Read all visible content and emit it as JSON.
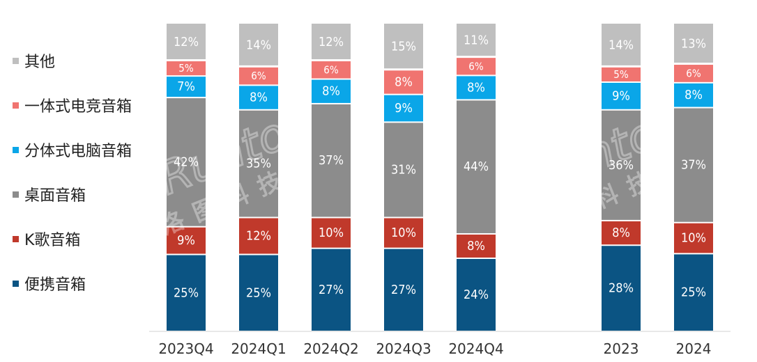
{
  "chart_data": {
    "type": "bar",
    "stacked": true,
    "normalized": true,
    "categories": [
      "2023Q4",
      "2024Q1",
      "2024Q2",
      "2024Q3",
      "2024Q4",
      "2023",
      "2024"
    ],
    "series": [
      {
        "name": "便携音箱",
        "color": "#0b5483",
        "values": [
          25,
          25,
          27,
          27,
          24,
          28,
          25
        ],
        "labels": [
          "25%",
          "25%",
          "27%",
          "27%",
          "24%",
          "28%",
          "25%"
        ]
      },
      {
        "name": "K歌音箱",
        "color": "#c0392b",
        "values": [
          9,
          12,
          10,
          10,
          8,
          8,
          10
        ],
        "labels": [
          "9%",
          "12%",
          "10%",
          "10%",
          "8%",
          "8%",
          "10%"
        ]
      },
      {
        "name": "桌面音箱",
        "color": "#8c8c8c",
        "values": [
          42,
          35,
          37,
          31,
          44,
          36,
          37
        ],
        "labels": [
          "42%",
          "35%",
          "37%",
          "31%",
          "44%",
          "36%",
          "37%"
        ]
      },
      {
        "name": "分体式电脑音箱",
        "color": "#0aa6e8",
        "values": [
          7,
          8,
          8,
          9,
          8,
          9,
          8
        ],
        "labels": [
          "7%",
          "8%",
          "8%",
          "9%",
          "8%",
          "9%",
          "8%"
        ]
      },
      {
        "name": "一体式电竞音箱",
        "color": "#f07470",
        "values": [
          5,
          6,
          6,
          8,
          6,
          5,
          6
        ],
        "labels": [
          "5%",
          "6%",
          "6%",
          "8%",
          "6%",
          "5%",
          "6%"
        ]
      },
      {
        "name": "其他",
        "color": "#bfbfbf",
        "values": [
          12,
          14,
          12,
          15,
          11,
          14,
          13
        ],
        "labels": [
          "12%",
          "14%",
          "12%",
          "15%",
          "11%",
          "14%",
          "13%"
        ]
      }
    ],
    "legend_position": "left",
    "grid": false,
    "title": "",
    "xlabel": "",
    "ylabel": ""
  },
  "watermark": {
    "line1": "Runto",
    "line2": "洛图科技"
  }
}
